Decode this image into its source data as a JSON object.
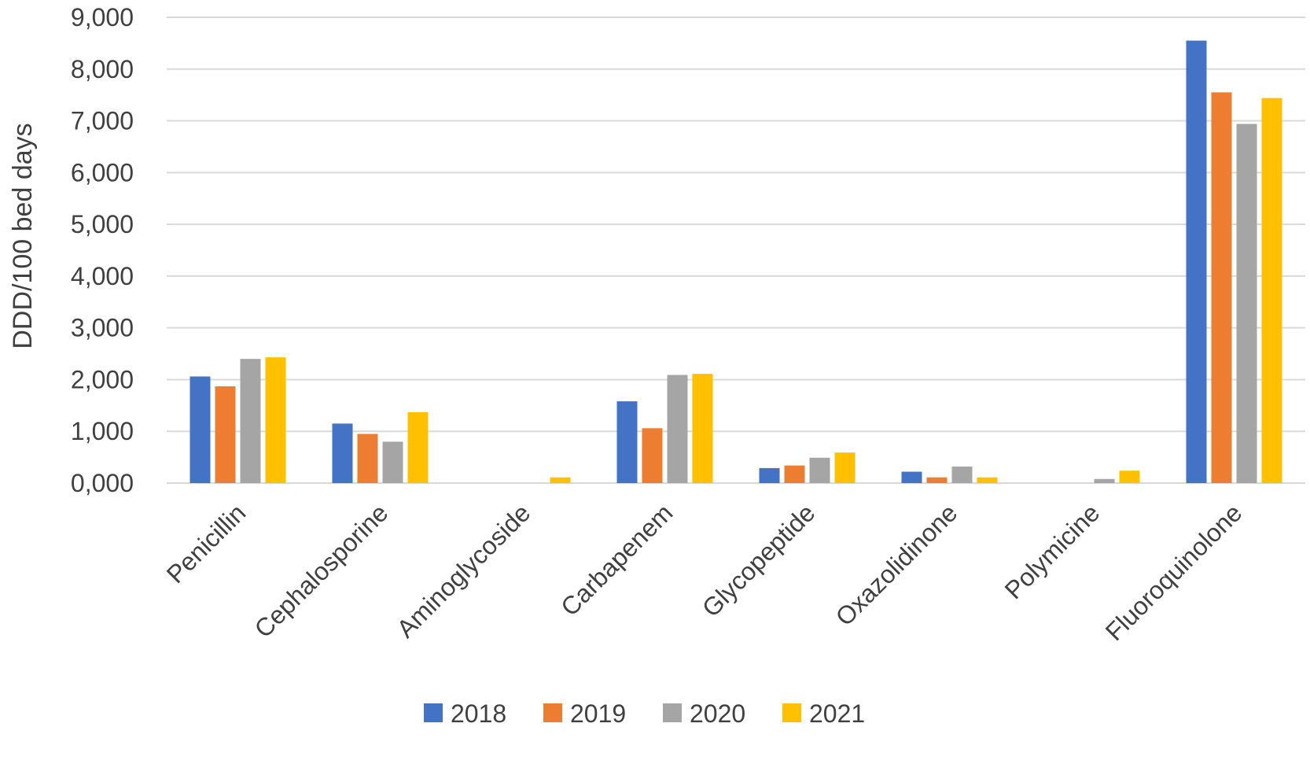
{
  "chart_data": {
    "type": "bar",
    "title": "",
    "xlabel": "",
    "ylabel": "DDD/100 bed days",
    "ylim": [
      0,
      9000
    ],
    "yticks": [
      {
        "value": 0,
        "label": "0,000"
      },
      {
        "value": 1000,
        "label": "1,000"
      },
      {
        "value": 2000,
        "label": "2,000"
      },
      {
        "value": 3000,
        "label": "3,000"
      },
      {
        "value": 4000,
        "label": "4,000"
      },
      {
        "value": 5000,
        "label": "5,000"
      },
      {
        "value": 6000,
        "label": "6,000"
      },
      {
        "value": 7000,
        "label": "7,000"
      },
      {
        "value": 8000,
        "label": "8,000"
      },
      {
        "value": 9000,
        "label": "9,000"
      }
    ],
    "grid": true,
    "legend_position": "bottom",
    "categories": [
      "Penicillin",
      "Cephalosporine",
      "Aminoglycoside",
      "Carbapenem",
      "Glycopeptide",
      "Oxazolidinone",
      "Polymicine",
      "Fluoroquinolone"
    ],
    "series": [
      {
        "name": "2018",
        "color": "#4472c4",
        "values": [
          2060,
          1150,
          0,
          1580,
          290,
          220,
          0,
          8550
        ]
      },
      {
        "name": "2019",
        "color": "#ed7d31",
        "values": [
          1870,
          950,
          0,
          1060,
          340,
          110,
          0,
          7550
        ]
      },
      {
        "name": "2020",
        "color": "#a5a5a5",
        "values": [
          2400,
          800,
          0,
          2090,
          490,
          320,
          80,
          6940
        ]
      },
      {
        "name": "2021",
        "color": "#ffc000",
        "values": [
          2430,
          1370,
          110,
          2110,
          590,
          110,
          240,
          7440
        ]
      }
    ]
  }
}
